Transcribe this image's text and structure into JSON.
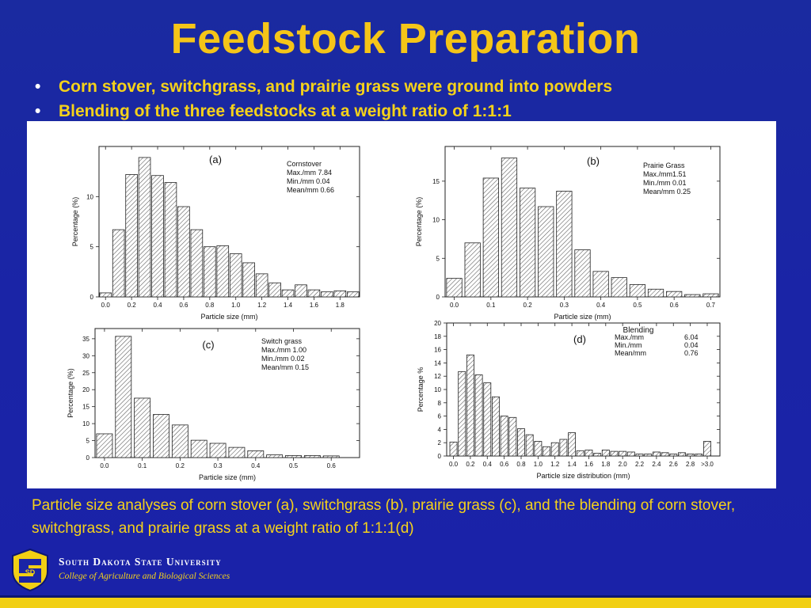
{
  "slide": {
    "title": "Feedstock Preparation",
    "bullets": [
      "Corn stover, switchgrass, and prairie grass were ground into powders",
      "Blending of the three feedstocks at a weight ratio of 1:1:1"
    ],
    "bullet_char": "•",
    "caption": "Particle size analyses of corn stover (a), switchgrass (b), prairie grass (c), and the blending of corn stover, switchgrass, and prairie grass at a weight ratio of 1:1:1(d)",
    "university": "South Dakota State University",
    "college": "College of Agriculture and Biological Sciences",
    "logo_text": "SD",
    "colors": {
      "background": "#1a24a6",
      "title": "#f5c518",
      "text": "#f5d21a",
      "bar_fill": "#ffffff",
      "bar_hatch": "#555555"
    }
  },
  "chart_data": [
    {
      "type": "bar",
      "panel_label": "(a)",
      "legend_lines": [
        "Cornstover",
        "Max./mm 7.84",
        "Min./mm 0.04",
        "Mean/mm 0.66"
      ],
      "xlabel": "Particle size (mm)",
      "ylabel": "Percentage (%)",
      "xlim": [
        -0.05,
        1.95
      ],
      "ylim": [
        0,
        15
      ],
      "xticks": [
        0.0,
        0.2,
        0.4,
        0.6,
        0.8,
        1.0,
        1.2,
        1.4,
        1.6,
        1.8
      ],
      "xtick_labels": [
        "0.0",
        "0.2",
        "0.4",
        "0.6",
        "0.8",
        "1.0",
        "1.2",
        "1.4",
        "1.6",
        "1.8"
      ],
      "yticks": [
        0,
        5,
        10
      ],
      "ytick_labels": [
        "0",
        "5",
        "10"
      ],
      "bar_width": 0.09,
      "x": [
        0.0,
        0.1,
        0.2,
        0.3,
        0.4,
        0.5,
        0.6,
        0.7,
        0.8,
        0.9,
        1.0,
        1.1,
        1.2,
        1.3,
        1.4,
        1.5,
        1.6,
        1.7,
        1.8,
        1.9
      ],
      "values": [
        0.4,
        6.7,
        12.2,
        13.9,
        12.1,
        11.4,
        9.0,
        6.7,
        5.0,
        5.1,
        4.3,
        3.4,
        2.3,
        1.4,
        0.7,
        1.2,
        0.7,
        0.5,
        0.6,
        0.5
      ]
    },
    {
      "type": "bar",
      "panel_label": "(b)",
      "legend_lines": [
        "Prairie Grass",
        "Max./mm1.51",
        "Min./mm 0.01",
        "Mean/mm 0.25"
      ],
      "xlabel": "Particle size (mm)",
      "ylabel": "Percentage (%)",
      "xlim": [
        -0.025,
        0.725
      ],
      "ylim": [
        0,
        19.5
      ],
      "xticks": [
        0.0,
        0.1,
        0.2,
        0.3,
        0.4,
        0.5,
        0.6,
        0.7
      ],
      "xtick_labels": [
        "0.0",
        "0.1",
        "0.2",
        "0.3",
        "0.4",
        "0.5",
        "0.6",
        "0.7"
      ],
      "yticks": [
        0,
        5,
        10,
        15
      ],
      "ytick_labels": [
        "0",
        "5",
        "10",
        "15"
      ],
      "bar_width": 0.042,
      "x": [
        0.0,
        0.05,
        0.1,
        0.15,
        0.2,
        0.25,
        0.3,
        0.35,
        0.4,
        0.45,
        0.5,
        0.55,
        0.6,
        0.65,
        0.7
      ],
      "values": [
        2.4,
        7.0,
        15.4,
        18.0,
        14.1,
        11.7,
        13.7,
        6.1,
        3.3,
        2.5,
        1.6,
        1.0,
        0.7,
        0.3,
        0.4
      ]
    },
    {
      "type": "bar",
      "panel_label": "(c)",
      "legend_lines": [
        "Switch grass",
        "Max./mm 1.00",
        "Min./mm 0.02",
        "Mean/mm 0.15"
      ],
      "xlabel": "Particle size (mm)",
      "ylabel": "Percentage (%)",
      "xlim": [
        -0.025,
        0.675
      ],
      "ylim": [
        0,
        38
      ],
      "xticks": [
        0.0,
        0.1,
        0.2,
        0.3,
        0.4,
        0.5,
        0.6
      ],
      "xtick_labels": [
        "0.0",
        "0.1",
        "0.2",
        "0.3",
        "0.4",
        "0.5",
        "0.6"
      ],
      "yticks": [
        0,
        5,
        10,
        15,
        20,
        25,
        30,
        35
      ],
      "ytick_labels": [
        "0",
        "5",
        "10",
        "15",
        "20",
        "25",
        "30",
        "35"
      ],
      "bar_width": 0.042,
      "x": [
        0.0,
        0.05,
        0.1,
        0.15,
        0.2,
        0.25,
        0.3,
        0.35,
        0.4,
        0.45,
        0.5,
        0.55,
        0.6
      ],
      "values": [
        7.0,
        35.7,
        17.5,
        12.7,
        9.6,
        5.1,
        4.2,
        3.0,
        2.0,
        0.8,
        0.6,
        0.6,
        0.5
      ]
    },
    {
      "type": "bar",
      "panel_label": "(d)",
      "legend_title": "Blending",
      "legend_rows": [
        [
          "Max./mm",
          "6.04"
        ],
        [
          "Min./mm",
          "0.04"
        ],
        [
          "Mean/mm",
          "0.76"
        ]
      ],
      "xlabel": "Particle size distribution (mm)",
      "ylabel": "Percentage %",
      "xlim": [
        -0.08,
        3.15
      ],
      "ylim": [
        0,
        20
      ],
      "xticks": [
        0.0,
        0.2,
        0.4,
        0.6,
        0.8,
        1.0,
        1.2,
        1.4,
        1.6,
        1.8,
        2.0,
        2.2,
        2.4,
        2.6,
        2.8,
        3.0
      ],
      "xtick_labels": [
        "0.0",
        "0.2",
        "0.4",
        "0.6",
        "0.8",
        "1.0",
        "1.2",
        "1.4",
        "1.6",
        "1.8",
        "2.0",
        "2.2",
        "2.4",
        "2.6",
        "2.8",
        ">3.0"
      ],
      "yticks": [
        0,
        2,
        4,
        6,
        8,
        10,
        12,
        14,
        16,
        18,
        20
      ],
      "ytick_labels": [
        "0",
        "2",
        "4",
        "6",
        "8",
        "10",
        "12",
        "14",
        "16",
        "18",
        "20"
      ],
      "bar_width": 0.085,
      "x": [
        0.0,
        0.1,
        0.2,
        0.3,
        0.4,
        0.5,
        0.6,
        0.7,
        0.8,
        0.9,
        1.0,
        1.1,
        1.2,
        1.3,
        1.4,
        1.5,
        1.6,
        1.7,
        1.8,
        1.9,
        2.0,
        2.1,
        2.2,
        2.3,
        2.4,
        2.5,
        2.6,
        2.7,
        2.8,
        2.9,
        3.0
      ],
      "values": [
        2.1,
        12.7,
        15.2,
        12.2,
        11.0,
        8.9,
        6.0,
        5.8,
        4.1,
        3.2,
        2.2,
        1.4,
        2.0,
        2.5,
        3.5,
        0.8,
        0.9,
        0.4,
        0.9,
        0.7,
        0.7,
        0.6,
        0.3,
        0.3,
        0.6,
        0.5,
        0.3,
        0.5,
        0.3,
        0.3,
        2.2
      ]
    }
  ]
}
